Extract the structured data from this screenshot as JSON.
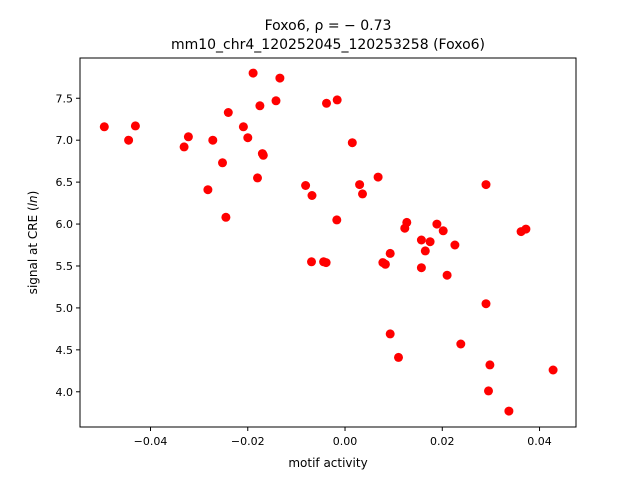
{
  "chart_data": {
    "type": "scatter",
    "title_line1": "Foxo6, ρ = − 0.73",
    "title_line2": "mm10_chr4_120252045_120253258 (Foxo6)",
    "xlabel": "motif activity",
    "ylabel_prefix": "signal at CRE (",
    "ylabel_italic": "ln",
    "ylabel_suffix": ")",
    "xlim": [
      -0.0545,
      0.0475
    ],
    "ylim": [
      3.58,
      7.98
    ],
    "xticks": [
      -0.04,
      -0.02,
      0.0,
      0.02,
      0.04
    ],
    "xtick_labels": [
      "−0.04",
      "−0.02",
      "0.00",
      "0.02",
      "0.04"
    ],
    "yticks": [
      4.0,
      4.5,
      5.0,
      5.5,
      6.0,
      6.5,
      7.0,
      7.5
    ],
    "ytick_labels": [
      "4.0",
      "4.5",
      "5.0",
      "5.5",
      "6.0",
      "6.5",
      "7.0",
      "7.5"
    ],
    "grid": false,
    "marker_color": "#ff0000",
    "points": [
      {
        "x": -0.0495,
        "y": 7.16
      },
      {
        "x": -0.0445,
        "y": 7.0
      },
      {
        "x": -0.0431,
        "y": 7.17
      },
      {
        "x": -0.0331,
        "y": 6.92
      },
      {
        "x": -0.0322,
        "y": 7.04
      },
      {
        "x": -0.0272,
        "y": 7.0
      },
      {
        "x": -0.0282,
        "y": 6.41
      },
      {
        "x": -0.0252,
        "y": 6.73
      },
      {
        "x": -0.024,
        "y": 7.33
      },
      {
        "x": -0.0245,
        "y": 6.08
      },
      {
        "x": -0.0209,
        "y": 7.16
      },
      {
        "x": -0.02,
        "y": 7.03
      },
      {
        "x": -0.0189,
        "y": 7.8
      },
      {
        "x": -0.018,
        "y": 6.55
      },
      {
        "x": -0.0175,
        "y": 7.41
      },
      {
        "x": -0.017,
        "y": 6.84
      },
      {
        "x": -0.0168,
        "y": 6.82
      },
      {
        "x": -0.0142,
        "y": 7.47
      },
      {
        "x": -0.0134,
        "y": 7.74
      },
      {
        "x": -0.0081,
        "y": 6.46
      },
      {
        "x": -0.0068,
        "y": 6.34
      },
      {
        "x": -0.0069,
        "y": 5.55
      },
      {
        "x": -0.0044,
        "y": 5.55
      },
      {
        "x": -0.0039,
        "y": 5.54
      },
      {
        "x": -0.0038,
        "y": 7.44
      },
      {
        "x": -0.0016,
        "y": 7.48
      },
      {
        "x": -0.0017,
        "y": 6.05
      },
      {
        "x": 0.0015,
        "y": 6.97
      },
      {
        "x": 0.003,
        "y": 6.47
      },
      {
        "x": 0.0036,
        "y": 6.36
      },
      {
        "x": 0.0068,
        "y": 6.56
      },
      {
        "x": 0.0078,
        "y": 5.54
      },
      {
        "x": 0.0083,
        "y": 5.52
      },
      {
        "x": 0.0093,
        "y": 5.65
      },
      {
        "x": 0.0093,
        "y": 4.69
      },
      {
        "x": 0.011,
        "y": 4.41
      },
      {
        "x": 0.0123,
        "y": 5.95
      },
      {
        "x": 0.0127,
        "y": 6.02
      },
      {
        "x": 0.0157,
        "y": 5.81
      },
      {
        "x": 0.0157,
        "y": 5.48
      },
      {
        "x": 0.0165,
        "y": 5.68
      },
      {
        "x": 0.0175,
        "y": 5.79
      },
      {
        "x": 0.0189,
        "y": 6.0
      },
      {
        "x": 0.0202,
        "y": 5.92
      },
      {
        "x": 0.021,
        "y": 5.39
      },
      {
        "x": 0.0226,
        "y": 5.75
      },
      {
        "x": 0.0238,
        "y": 4.57
      },
      {
        "x": 0.029,
        "y": 6.47
      },
      {
        "x": 0.029,
        "y": 5.05
      },
      {
        "x": 0.0295,
        "y": 4.01
      },
      {
        "x": 0.0298,
        "y": 4.32
      },
      {
        "x": 0.0337,
        "y": 3.77
      },
      {
        "x": 0.0362,
        "y": 5.91
      },
      {
        "x": 0.0372,
        "y": 5.94
      },
      {
        "x": 0.0428,
        "y": 4.26
      }
    ]
  }
}
